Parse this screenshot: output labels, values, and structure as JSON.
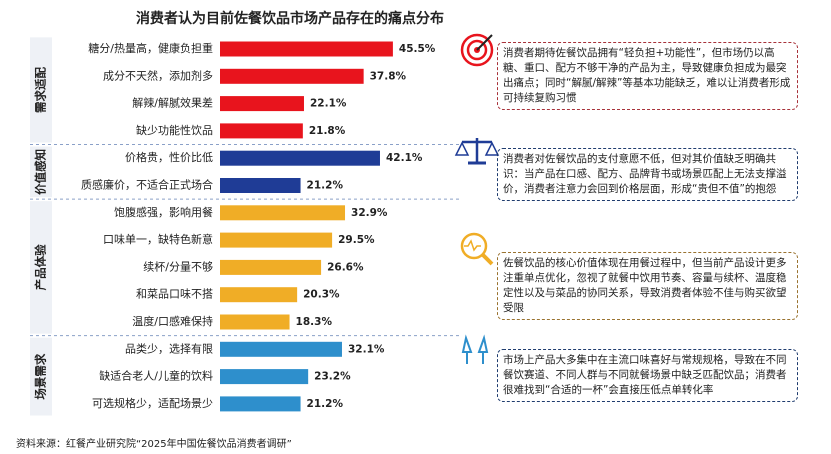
{
  "chart_data": {
    "type": "bar",
    "orientation": "horizontal",
    "title": "消费者认为目前佐餐饮品市场产品存在的痛点分布",
    "groups": [
      {
        "name": "需求适配",
        "color": "#e8141d",
        "categories": [
          "糖分/热量高，健康负担重",
          "成分不天然，添加剂多",
          "解辣/解腻效果差",
          "缺少功能性饮品"
        ],
        "values": [
          45.5,
          37.8,
          22.1,
          21.8
        ],
        "value_labels": [
          "45.5%",
          "37.8%",
          "22.1%",
          "21.8%"
        ]
      },
      {
        "name": "价值感知",
        "color": "#1f3c96",
        "categories": [
          "价格贵，性价比低",
          "质感廉价，不适合正式场合"
        ],
        "values": [
          42.1,
          21.2
        ],
        "value_labels": [
          "42.1%",
          "21.2%"
        ]
      },
      {
        "name": "产品体验",
        "color": "#f0ad26",
        "categories": [
          "饱腹感强，影响用餐",
          "口味单一，缺特色新意",
          "续杯/分量不够",
          "和菜品口味不搭",
          "温度/口感难保持"
        ],
        "values": [
          32.9,
          29.5,
          26.6,
          20.3,
          18.3
        ],
        "value_labels": [
          "32.9%",
          "29.5%",
          "26.6%",
          "20.3%",
          "18.3%"
        ]
      },
      {
        "name": "场景需求",
        "color": "#2e8fcc",
        "categories": [
          "品类少，选择有限",
          "缺适合老人/儿童的饮料",
          "可选规格少，适配场景少"
        ],
        "values": [
          32.1,
          23.2,
          21.2
        ],
        "value_labels": [
          "32.1%",
          "23.2%",
          "21.2%"
        ]
      }
    ],
    "annotations": [
      {
        "text": "消费者期待佐餐饮品拥有“轻负担+功能性”，但市场仍以高糖、重口、配方不够干净的产品为主，导致健康负担成为最突出痛点；同时“解腻/解辣”等基本功能缺乏，难以让消费者形成可持续复购习惯",
        "color": "#a8323a"
      },
      {
        "text": "消费者对佐餐饮品的支付意愿不低，但对其价值缺乏明确共识：当产品在口感、配方、品牌背书或场景匹配上无法支撑溢价，消费者注意力会回到价格层面，形成“贵但不值”的抱怨",
        "color": "#1f3c6e"
      },
      {
        "text": "佐餐饮品的核心价值体现在用餐过程中，但当前产品设计更多注重单点优化，忽视了就餐中饮用节奏、容量与续杯、温度稳定性以及与菜品的协同关系，导致消费者体验不佳与购买欲望受限",
        "color": "#9a7330"
      },
      {
        "text": "市场上产品大多集中在主流口味喜好与常规规格，导致在不同餐饮赛道、不同人群与不同就餐场景中缺乏匹配饮品；消费者很难找到“合适的一杯”会直接压低点单转化率",
        "color": "#1f3c6e"
      }
    ],
    "source": "资料来源：红餐产业研究院“2025年中国佐餐饮品消费者调研”"
  }
}
